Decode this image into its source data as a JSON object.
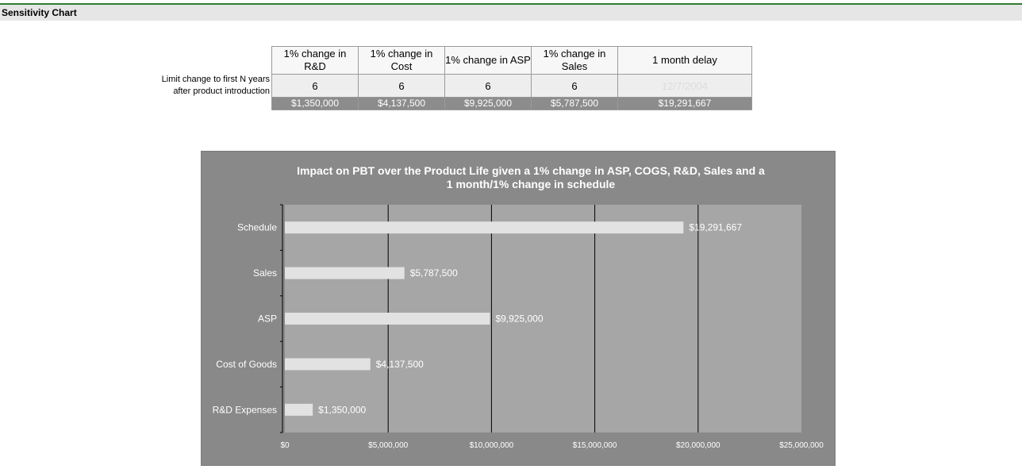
{
  "page": {
    "title": "Sensitivity Chart"
  },
  "table": {
    "headers": [
      "1% change in R&D",
      "1% change in Cost",
      "1% change in ASP",
      "1% change in Sales",
      "1 month delay"
    ],
    "row_label": [
      "Limit change to first N years",
      "after product introduction"
    ],
    "inputs": [
      "6",
      "6",
      "6",
      "6",
      "12/7/2004"
    ],
    "results": [
      "$1,350,000",
      "$4,137,500",
      "$9,925,000",
      "$5,787,500",
      "$19,291,667"
    ]
  },
  "chart_data": {
    "type": "bar",
    "orientation": "horizontal",
    "title": "Impact on PBT over the Product Life given a 1% change in ASP, COGS, R&D, Sales and a 1 month/1% change in schedule",
    "title_lines": [
      "Impact on PBT over the Product Life given a 1% change in ASP, COGS, R&D, Sales and a",
      "1 month/1% change in schedule"
    ],
    "categories": [
      "Schedule",
      "Sales",
      "ASP",
      "Cost of Goods",
      "R&D Expenses"
    ],
    "values": [
      19291667,
      5787500,
      9925000,
      4137500,
      1350000
    ],
    "data_labels": [
      "$19,291,667",
      "$5,787,500",
      "$9,925,000",
      "$4,137,500",
      "$1,350,000"
    ],
    "x_ticks": [
      0,
      5000000,
      10000000,
      15000000,
      20000000,
      25000000
    ],
    "x_tick_labels": [
      "$0",
      "$5,000,000",
      "$10,000,000",
      "$15,000,000",
      "$20,000,000",
      "$25,000,000"
    ],
    "xlim": [
      0,
      25000000
    ],
    "grid": true,
    "xlabel": "",
    "ylabel": "",
    "colors": {
      "outer_background": "#898989",
      "plot_background": "#a6a6a6",
      "bar": "#e2e2e2",
      "gridline": "#000000",
      "text": "#ffffff"
    }
  }
}
